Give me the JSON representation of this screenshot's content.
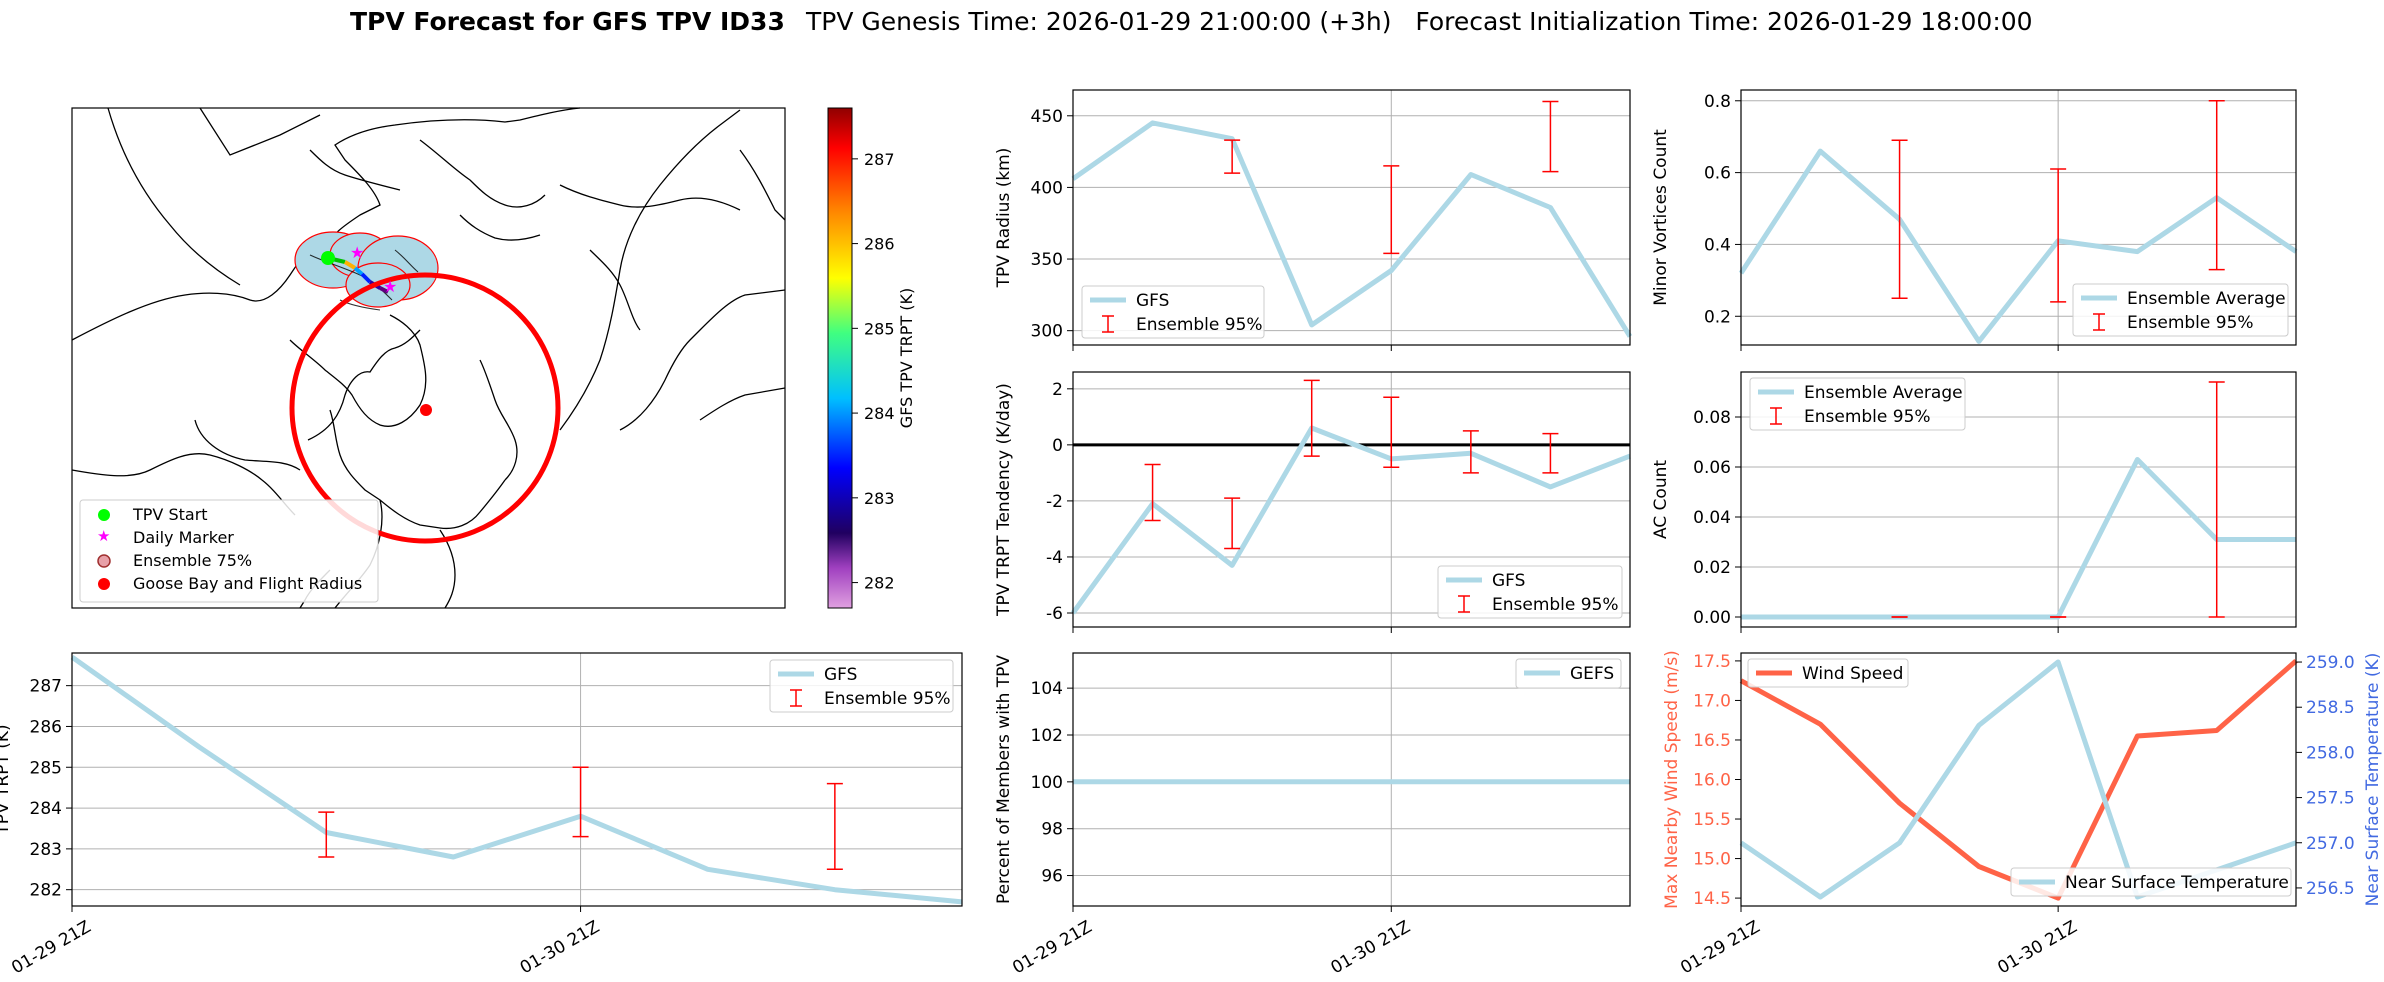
{
  "figure": {
    "title_bold": "TPV Forecast for GFS TPV ID33",
    "title_rest": "TPV Genesis Time: 2026-01-29 21:00:00 (+3h)   Forecast Initialization Time: 2026-01-29 18:00:00"
  },
  "colors": {
    "gfs_line": "#add8e6",
    "errorbar": "#ff0000",
    "wind": "#ff6347",
    "temp_axis": "#4169e1",
    "grid": "#b0b0b0"
  },
  "map": {
    "colorbar_label": "GFS TPV TRPT (K)",
    "colorbar_ticks": [
      "282",
      "283",
      "284",
      "285",
      "286",
      "287"
    ],
    "colorbar_range": [
      281.7,
      287.6
    ],
    "legend": [
      "TPV Start",
      "Daily Marker",
      "Ensemble 75%",
      "Goose Bay and Flight Radius"
    ]
  },
  "chart_data": [
    {
      "id": "radius",
      "type": "line",
      "ylabel": "TPV Radius (km)",
      "ylim": [
        290,
        468
      ],
      "yticks": [
        300,
        350,
        400,
        450
      ],
      "x": [
        0,
        1,
        2,
        3,
        4,
        5,
        6,
        7
      ],
      "series": [
        {
          "name": "GFS",
          "values": [
            406,
            445,
            434,
            304,
            342,
            409,
            386,
            296
          ]
        }
      ],
      "errorbars": [
        {
          "x": 2,
          "low": 410,
          "high": 433
        },
        {
          "x": 4,
          "low": 354,
          "high": 415
        },
        {
          "x": 6,
          "low": 411,
          "high": 460
        }
      ],
      "legend": [
        "GFS",
        "Ensemble 95%"
      ],
      "legend_loc": "lower-left"
    },
    {
      "id": "minor",
      "type": "line",
      "ylabel": "Minor Vortices Count",
      "ylim": [
        0.12,
        0.83
      ],
      "yticks": [
        0.2,
        0.4,
        0.6,
        0.8
      ],
      "x": [
        0,
        1,
        2,
        3,
        4,
        5,
        6,
        7
      ],
      "series": [
        {
          "name": "Ensemble Average",
          "values": [
            0.32,
            0.66,
            0.47,
            0.13,
            0.41,
            0.38,
            0.53,
            0.38
          ]
        }
      ],
      "errorbars": [
        {
          "x": 2,
          "low": 0.25,
          "high": 0.69
        },
        {
          "x": 4,
          "low": 0.24,
          "high": 0.61
        },
        {
          "x": 6,
          "low": 0.33,
          "high": 0.8
        }
      ],
      "legend": [
        "Ensemble Average",
        "Ensemble 95%"
      ],
      "legend_loc": "lower-right"
    },
    {
      "id": "tendency",
      "type": "line",
      "ylabel": "TPV TRPT Tendency (K/day)",
      "ylim": [
        -6.5,
        2.6
      ],
      "yticks": [
        -6,
        -4,
        -2,
        0,
        2
      ],
      "x": [
        0,
        1,
        2,
        3,
        4,
        5,
        6,
        7
      ],
      "series": [
        {
          "name": "GFS",
          "values": [
            -6.0,
            -2.1,
            -4.3,
            0.6,
            -0.5,
            -0.3,
            -1.5,
            -0.4
          ]
        }
      ],
      "errorbars": [
        {
          "x": 1,
          "low": -2.7,
          "high": -0.7
        },
        {
          "x": 2,
          "low": -3.7,
          "high": -1.9
        },
        {
          "x": 3,
          "low": -0.4,
          "high": 2.3
        },
        {
          "x": 4,
          "low": -0.8,
          "high": 1.7
        },
        {
          "x": 5,
          "low": -1.0,
          "high": 0.5
        },
        {
          "x": 6,
          "low": -1.0,
          "high": 0.4
        }
      ],
      "zero_line": true,
      "legend": [
        "GFS",
        "Ensemble 95%"
      ],
      "legend_loc": "lower-right"
    },
    {
      "id": "ac",
      "type": "line",
      "ylabel": "AC Count",
      "ylim": [
        -0.004,
        0.098
      ],
      "yticks": [
        "0.00",
        "0.02",
        "0.04",
        "0.06",
        "0.08"
      ],
      "x": [
        0,
        1,
        2,
        3,
        4,
        5,
        6,
        7
      ],
      "series": [
        {
          "name": "Ensemble Average",
          "values": [
            0,
            0,
            0,
            0,
            0,
            0.063,
            0.031,
            0.031
          ]
        }
      ],
      "errorbars": [
        {
          "x": 2,
          "low": 0,
          "high": 0
        },
        {
          "x": 4,
          "low": 0,
          "high": 0
        },
        {
          "x": 6,
          "low": 0,
          "high": 0.094
        }
      ],
      "legend": [
        "Ensemble Average",
        "Ensemble 95%"
      ],
      "legend_loc": "upper-left"
    },
    {
      "id": "trpt",
      "type": "line",
      "ylabel": "TPV TRPT (K)",
      "ylim": [
        281.6,
        287.8
      ],
      "yticks": [
        282,
        283,
        284,
        285,
        286,
        287
      ],
      "xlabels": [
        "01-29 21Z",
        "01-30 21Z"
      ],
      "x": [
        0,
        1,
        2,
        3,
        4,
        5,
        6,
        7
      ],
      "series": [
        {
          "name": "GFS",
          "values": [
            287.7,
            285.5,
            283.4,
            282.8,
            283.8,
            282.5,
            282.0,
            281.7
          ]
        }
      ],
      "errorbars": [
        {
          "x": 2,
          "low": 282.8,
          "high": 283.9
        },
        {
          "x": 4,
          "low": 283.3,
          "high": 285.0
        },
        {
          "x": 6,
          "low": 282.5,
          "high": 284.6
        }
      ],
      "legend": [
        "GFS",
        "Ensemble 95%"
      ],
      "legend_loc": "upper-right"
    },
    {
      "id": "percent",
      "type": "line",
      "ylabel": "Percent of Members with TPV",
      "ylim": [
        94.7,
        105.5
      ],
      "yticks": [
        96,
        98,
        100,
        102,
        104
      ],
      "xlabels": [
        "01-29 21Z",
        "01-30 21Z"
      ],
      "x": [
        0,
        1,
        2,
        3,
        4,
        5,
        6,
        7
      ],
      "series": [
        {
          "name": "GEFS",
          "values": [
            100,
            100,
            100,
            100,
            100,
            100,
            100,
            100
          ]
        }
      ],
      "legend": [
        "GEFS"
      ],
      "legend_loc": "upper-right"
    },
    {
      "id": "wind",
      "type": "line",
      "ylabel": "Max Nearby Wind Speed (m/s)",
      "ylim": [
        14.4,
        17.6
      ],
      "yticks": [
        "14.5",
        "15.0",
        "15.5",
        "16.0",
        "16.5",
        "17.0",
        "17.5"
      ],
      "ylabel2": "Near Surface Temperature (K)",
      "ylim2": [
        256.3,
        259.1
      ],
      "yticks2": [
        "256.5",
        "257.0",
        "257.5",
        "258.0",
        "258.5",
        "259.0"
      ],
      "xlabels": [
        "01-29 21Z",
        "01-30 21Z"
      ],
      "x": [
        0,
        1,
        2,
        3,
        4,
        5,
        6,
        7
      ],
      "series": [
        {
          "name": "Wind Speed",
          "axis": "left",
          "values": [
            17.25,
            16.7,
            15.7,
            14.9,
            14.5,
            16.55,
            16.62,
            17.5
          ]
        },
        {
          "name": "Near Surface Temperature",
          "axis": "right",
          "values": [
            257.0,
            256.4,
            257.0,
            258.3,
            259.0,
            256.4,
            256.7,
            257.0
          ]
        }
      ],
      "legend": [
        "Wind Speed",
        "Near Surface Temperature"
      ]
    }
  ]
}
